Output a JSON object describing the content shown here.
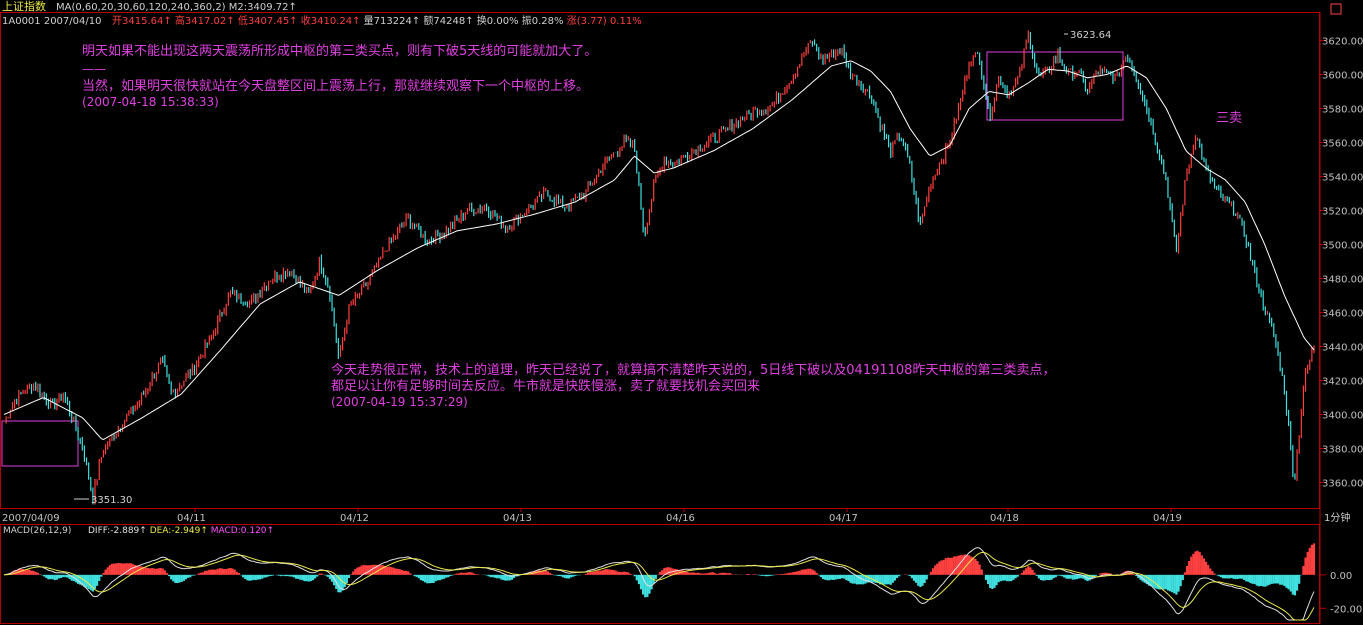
{
  "header": {
    "title": "上证指数",
    "ma_text": "MA(0,60,20,30,60,120,240,360,2) M2:3409.72↑",
    "code_date": "1A0001 2007/04/10",
    "quote_items": [
      {
        "label": "开",
        "value": "3415.64↑",
        "color": "#ff4040"
      },
      {
        "label": "高",
        "value": "3417.02↑",
        "color": "#ff4040"
      },
      {
        "label": "低",
        "value": "3407.45↑",
        "color": "#ff4040"
      },
      {
        "label": "收",
        "value": "3410.24↑",
        "color": "#ff4040"
      },
      {
        "label": "量",
        "value": "713224↑",
        "color": "#d0d0d0"
      },
      {
        "label": "额",
        "value": "74248↑",
        "color": "#d0d0d0"
      },
      {
        "label": "换",
        "value": "0.00%",
        "color": "#d0d0d0"
      },
      {
        "label": "振",
        "value": "0.28%",
        "color": "#d0d0d0"
      },
      {
        "label": "涨",
        "value": "(3.77)",
        "color": "#ff4040"
      },
      {
        "label": "",
        "value": "0.11%",
        "color": "#ff4040"
      }
    ]
  },
  "annotations": {
    "note1_line1": "明天如果不能出现这两天震荡所形成中枢的第三类买点，则有下破5天线的可能就加大了。",
    "note1_dash": "——",
    "note1_line2": "当然，如果明天很快就站在今天盘整区间上震荡上行，那就继续观察下一个中枢的上移。",
    "note1_time": "(2007-04-18 15:38:33)",
    "note2_line1": "今天走势很正常，技术上的道理，昨天已经说了，就算搞不清楚昨天说的，5日线下破以及04191108昨天中枢的第三类卖点，",
    "note2_line2": "都足以让你有足够时间去反应。牛市就是快跌慢涨，卖了就要找机会买回来",
    "note2_time": "(2007-04-19 15:37:29)",
    "third_sell": "三卖",
    "high_label": "3623.64",
    "low_label": "3351.30"
  },
  "footer": {
    "period_label": "1分钟",
    "macd_text": "MACD(26,12,9)",
    "macd_items": [
      {
        "label": "DIFF:",
        "value": "-2.889↑",
        "color": "#e0e0e0"
      },
      {
        "label": "DEA:",
        "value": "-2.949↑",
        "color": "#e8e84a"
      },
      {
        "label": "MACD:",
        "value": "0.120↑",
        "color": "#ff50ff"
      }
    ]
  },
  "colors": {
    "up": "#ff4040",
    "down": "#40e0e0",
    "ma": "#ffffff",
    "dea": "#e8e84a",
    "frame": "#b40000",
    "annotation": "#e040e0",
    "axis_text": "#c0c0c0"
  },
  "chart_data": {
    "type": "line",
    "title": "上证指数",
    "ylim": [
      3345,
      3632
    ],
    "y_ticks": [
      3360,
      3380,
      3400,
      3420,
      3440,
      3460,
      3480,
      3500,
      3520,
      3540,
      3560,
      3580,
      3600,
      3620
    ],
    "x_labels": [
      "2007/04/09",
      "04/11",
      "04/12",
      "04/13",
      "04/16",
      "04/17",
      "04/18",
      "04/19"
    ],
    "price_anchors": [
      {
        "t": 0,
        "v": 3395
      },
      {
        "t": 1,
        "v": 3408
      },
      {
        "t": 3,
        "v": 3418
      },
      {
        "t": 5,
        "v": 3405
      },
      {
        "t": 6,
        "v": 3412
      },
      {
        "t": 8,
        "v": 3380
      },
      {
        "t": 9,
        "v": 3351.3
      },
      {
        "t": 10,
        "v": 3378
      },
      {
        "t": 12,
        "v": 3395
      },
      {
        "t": 14,
        "v": 3410
      },
      {
        "t": 16,
        "v": 3432
      },
      {
        "t": 17,
        "v": 3412
      },
      {
        "t": 19,
        "v": 3425
      },
      {
        "t": 21,
        "v": 3445
      },
      {
        "t": 23,
        "v": 3472
      },
      {
        "t": 25,
        "v": 3465
      },
      {
        "t": 27,
        "v": 3480
      },
      {
        "t": 29,
        "v": 3485
      },
      {
        "t": 31,
        "v": 3470
      },
      {
        "t": 32,
        "v": 3490
      },
      {
        "t": 33,
        "v": 3475
      },
      {
        "t": 34,
        "v": 3432
      },
      {
        "t": 35,
        "v": 3462
      },
      {
        "t": 37,
        "v": 3478
      },
      {
        "t": 39,
        "v": 3500
      },
      {
        "t": 41,
        "v": 3515
      },
      {
        "t": 43,
        "v": 3502
      },
      {
        "t": 45,
        "v": 3508
      },
      {
        "t": 47,
        "v": 3520
      },
      {
        "t": 49,
        "v": 3522
      },
      {
        "t": 51,
        "v": 3510
      },
      {
        "t": 53,
        "v": 3520
      },
      {
        "t": 55,
        "v": 3530
      },
      {
        "t": 57,
        "v": 3522
      },
      {
        "t": 59,
        "v": 3530
      },
      {
        "t": 61,
        "v": 3548
      },
      {
        "t": 63,
        "v": 3560
      },
      {
        "t": 64,
        "v": 3557
      },
      {
        "t": 65,
        "v": 3505
      },
      {
        "t": 66,
        "v": 3535
      },
      {
        "t": 67,
        "v": 3550
      },
      {
        "t": 68,
        "v": 3548
      },
      {
        "t": 70,
        "v": 3555
      },
      {
        "t": 72,
        "v": 3562
      },
      {
        "t": 74,
        "v": 3570
      },
      {
        "t": 76,
        "v": 3578
      },
      {
        "t": 78,
        "v": 3582
      },
      {
        "t": 80,
        "v": 3598
      },
      {
        "t": 82,
        "v": 3620
      },
      {
        "t": 83,
        "v": 3608
      },
      {
        "t": 85,
        "v": 3615
      },
      {
        "t": 86,
        "v": 3600
      },
      {
        "t": 88,
        "v": 3588
      },
      {
        "t": 89,
        "v": 3570
      },
      {
        "t": 90,
        "v": 3555
      },
      {
        "t": 91,
        "v": 3565
      },
      {
        "t": 92,
        "v": 3545
      },
      {
        "t": 93,
        "v": 3510
      },
      {
        "t": 94,
        "v": 3535
      },
      {
        "t": 96,
        "v": 3560
      },
      {
        "t": 97,
        "v": 3582
      },
      {
        "t": 98,
        "v": 3608
      },
      {
        "t": 99,
        "v": 3612
      },
      {
        "t": 100,
        "v": 3575
      },
      {
        "t": 101,
        "v": 3598
      },
      {
        "t": 102,
        "v": 3588
      },
      {
        "t": 103,
        "v": 3598
      },
      {
        "t": 104,
        "v": 3623.64
      },
      {
        "t": 105,
        "v": 3598
      },
      {
        "t": 106,
        "v": 3602
      },
      {
        "t": 107,
        "v": 3612
      },
      {
        "t": 108,
        "v": 3600
      },
      {
        "t": 109,
        "v": 3602
      },
      {
        "t": 110,
        "v": 3590
      },
      {
        "t": 111,
        "v": 3602
      },
      {
        "t": 113,
        "v": 3598
      },
      {
        "t": 114,
        "v": 3613
      },
      {
        "t": 115,
        "v": 3598
      },
      {
        "t": 116,
        "v": 3580
      },
      {
        "t": 117,
        "v": 3560
      },
      {
        "t": 118,
        "v": 3538
      },
      {
        "t": 119,
        "v": 3495
      },
      {
        "t": 120,
        "v": 3540
      },
      {
        "t": 121,
        "v": 3565
      },
      {
        "t": 122,
        "v": 3545
      },
      {
        "t": 123,
        "v": 3532
      },
      {
        "t": 124,
        "v": 3525
      },
      {
        "t": 125,
        "v": 3520
      },
      {
        "t": 126,
        "v": 3505
      },
      {
        "t": 127,
        "v": 3482
      },
      {
        "t": 128,
        "v": 3462
      },
      {
        "t": 129,
        "v": 3445
      },
      {
        "t": 130,
        "v": 3415
      },
      {
        "t": 131,
        "v": 3360
      },
      {
        "t": 132,
        "v": 3420
      },
      {
        "t": 133,
        "v": 3440
      }
    ],
    "ma_anchors": [
      {
        "t": 0,
        "v": 3400
      },
      {
        "t": 4,
        "v": 3410
      },
      {
        "t": 8,
        "v": 3398
      },
      {
        "t": 10,
        "v": 3385
      },
      {
        "t": 14,
        "v": 3398
      },
      {
        "t": 18,
        "v": 3412
      },
      {
        "t": 22,
        "v": 3438
      },
      {
        "t": 26,
        "v": 3465
      },
      {
        "t": 30,
        "v": 3478
      },
      {
        "t": 34,
        "v": 3470
      },
      {
        "t": 38,
        "v": 3485
      },
      {
        "t": 42,
        "v": 3498
      },
      {
        "t": 46,
        "v": 3508
      },
      {
        "t": 50,
        "v": 3512
      },
      {
        "t": 54,
        "v": 3518
      },
      {
        "t": 58,
        "v": 3525
      },
      {
        "t": 62,
        "v": 3538
      },
      {
        "t": 64,
        "v": 3552
      },
      {
        "t": 66,
        "v": 3542
      },
      {
        "t": 68,
        "v": 3545
      },
      {
        "t": 72,
        "v": 3555
      },
      {
        "t": 76,
        "v": 3568
      },
      {
        "t": 80,
        "v": 3585
      },
      {
        "t": 84,
        "v": 3605
      },
      {
        "t": 86,
        "v": 3608
      },
      {
        "t": 88,
        "v": 3602
      },
      {
        "t": 90,
        "v": 3590
      },
      {
        "t": 92,
        "v": 3568
      },
      {
        "t": 94,
        "v": 3552
      },
      {
        "t": 96,
        "v": 3558
      },
      {
        "t": 98,
        "v": 3580
      },
      {
        "t": 100,
        "v": 3590
      },
      {
        "t": 102,
        "v": 3588
      },
      {
        "t": 104,
        "v": 3595
      },
      {
        "t": 106,
        "v": 3603
      },
      {
        "t": 108,
        "v": 3602
      },
      {
        "t": 110,
        "v": 3598
      },
      {
        "t": 112,
        "v": 3600
      },
      {
        "t": 114,
        "v": 3605
      },
      {
        "t": 116,
        "v": 3598
      },
      {
        "t": 118,
        "v": 3580
      },
      {
        "t": 120,
        "v": 3555
      },
      {
        "t": 122,
        "v": 3545
      },
      {
        "t": 124,
        "v": 3538
      },
      {
        "t": 126,
        "v": 3525
      },
      {
        "t": 128,
        "v": 3500
      },
      {
        "t": 130,
        "v": 3470
      },
      {
        "t": 132,
        "v": 3445
      },
      {
        "t": 133,
        "v": 3438
      }
    ],
    "macd_ylim": [
      -27,
      22
    ],
    "macd_ticks": [
      0,
      -20
    ],
    "macd_ticks_label": [
      "0.00",
      "-20.00"
    ]
  }
}
